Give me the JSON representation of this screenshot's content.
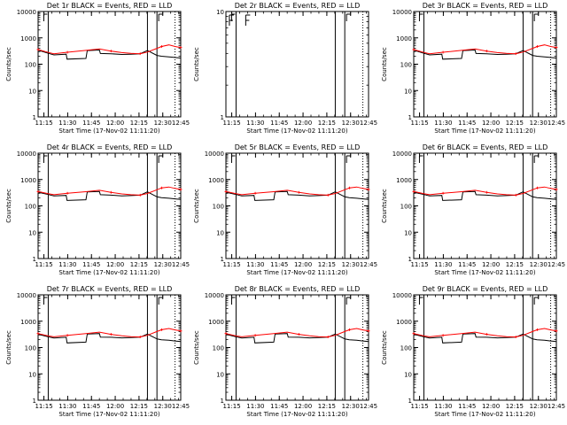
{
  "chart_data": [
    {
      "type": "line",
      "title": "Det 1r BLACK = Events, RED = LLD",
      "xlabel": "Start Time (17-Nov-02 11:11:20)",
      "ylabel": "Counts/sec",
      "x_ticks": [
        "11:15",
        "11:30",
        "11:45",
        "12:00",
        "12:15",
        "12:30",
        "12:45"
      ],
      "y_scale": "log",
      "ylim": [
        1,
        10000
      ],
      "y_ticks": [
        1,
        10,
        100,
        1000,
        10000
      ],
      "y_tick_labels": [
        "1",
        "10",
        "100",
        "1000",
        "10000"
      ],
      "has_data": true,
      "series": [
        {
          "color": "#000000",
          "x": [
            0.0,
            6.4,
            10.0,
            17.7,
            18.3,
            30.2,
            31.0,
            38.7,
            39.3,
            46.0,
            52.8,
            58.5,
            64.4,
            69.0,
            75.0,
            77.8,
            82.5,
            86.4,
            90.0
          ],
          "y": [
            340,
            260,
            225,
            240,
            155,
            165,
            330,
            345,
            255,
            250,
            235,
            240,
            250,
            330,
            215,
            200,
            190,
            180,
            170
          ]
        },
        {
          "color": "#ff0000",
          "x": [
            0.0,
            6.4,
            10.0,
            18.5,
            30.2,
            38.7,
            46.0,
            52.8,
            58.5,
            64.4,
            69.0,
            75.0,
            78.0,
            82.5,
            86.4,
            90.0
          ],
          "y": [
            360,
            280,
            250,
            285,
            335,
            380,
            315,
            275,
            258,
            250,
            288,
            400,
            470,
            540,
            470,
            430
          ]
        }
      ]
    },
    {
      "type": "line",
      "title": "Det 2r BLACK = Events, RED = LLD",
      "xlabel": "Start Time (17-Nov-02 11:11:20)",
      "ylabel": "Counts/sec",
      "x_ticks": [
        "11:15",
        "11:30",
        "11:45",
        "12:00",
        "12:15",
        "12:30",
        "12:45"
      ],
      "y_scale": "log",
      "ylim": [
        1,
        10
      ],
      "y_ticks": [
        1,
        10
      ],
      "y_tick_labels": [
        "1",
        "10"
      ],
      "has_data": false,
      "series": []
    },
    {
      "type": "line",
      "title": "Det 3r BLACK = Events, RED = LLD",
      "xlabel": "Start Time (17-Nov-02 11:11:20)",
      "ylabel": "Counts/sec",
      "x_ticks": [
        "11:15",
        "11:30",
        "11:45",
        "12:00",
        "12:15",
        "12:30",
        "12:45"
      ],
      "y_scale": "log",
      "ylim": [
        1,
        10000
      ],
      "y_ticks": [
        1,
        10,
        100,
        1000,
        10000
      ],
      "y_tick_labels": [
        "1",
        "10",
        "100",
        "1000",
        "10000"
      ],
      "has_data": true,
      "series": [
        {
          "color": "#000000",
          "x": [
            0.0,
            6.4,
            10.0,
            17.7,
            18.3,
            30.2,
            31.0,
            38.7,
            39.3,
            46.0,
            52.8,
            58.5,
            64.4,
            69.0,
            75.0,
            77.8,
            82.5,
            86.4,
            90.0
          ],
          "y": [
            340,
            260,
            225,
            240,
            155,
            165,
            330,
            345,
            255,
            250,
            235,
            240,
            250,
            330,
            215,
            200,
            190,
            180,
            170
          ]
        },
        {
          "color": "#ff0000",
          "x": [
            0.0,
            6.4,
            10.0,
            18.5,
            30.2,
            38.7,
            46.0,
            52.8,
            58.5,
            64.4,
            69.0,
            75.0,
            78.0,
            82.5,
            86.4,
            90.0
          ],
          "y": [
            360,
            280,
            250,
            285,
            335,
            380,
            315,
            275,
            258,
            250,
            288,
            400,
            470,
            540,
            470,
            430
          ]
        }
      ]
    },
    {
      "type": "line",
      "title": "Det 4r BLACK = Events, RED = LLD",
      "xlabel": "Start Time (17-Nov-02 11:11:20)",
      "ylabel": "Counts/sec",
      "x_ticks": [
        "11:15",
        "11:30",
        "11:45",
        "12:00",
        "12:15",
        "12:30",
        "12:45"
      ],
      "y_scale": "log",
      "ylim": [
        1,
        10000
      ],
      "y_ticks": [
        1,
        10,
        100,
        1000,
        10000
      ],
      "y_tick_labels": [
        "1",
        "10",
        "100",
        "1000",
        "10000"
      ],
      "has_data": true,
      "series": [
        {
          "color": "#000000",
          "x": [
            0.0,
            6.4,
            10.0,
            17.7,
            18.3,
            30.2,
            31.0,
            38.7,
            39.3,
            46.0,
            52.8,
            58.5,
            64.4,
            69.0,
            75.0,
            77.8,
            82.5,
            86.4,
            90.0
          ],
          "y": [
            330,
            270,
            240,
            250,
            160,
            170,
            340,
            350,
            265,
            255,
            240,
            245,
            255,
            340,
            220,
            205,
            195,
            185,
            175
          ]
        },
        {
          "color": "#ff0000",
          "x": [
            0.0,
            6.4,
            10.0,
            18.5,
            30.2,
            38.7,
            46.0,
            52.8,
            58.5,
            64.4,
            69.0,
            75.0,
            78.0,
            82.5,
            86.4,
            90.0
          ],
          "y": [
            350,
            290,
            265,
            300,
            345,
            390,
            325,
            285,
            265,
            255,
            295,
            410,
            480,
            520,
            460,
            420
          ]
        }
      ]
    },
    {
      "type": "line",
      "title": "Det 5r BLACK = Events, RED = LLD",
      "xlabel": "Start Time (17-Nov-02 11:11:20)",
      "ylabel": "Counts/sec",
      "x_ticks": [
        "11:15",
        "11:30",
        "11:45",
        "12:00",
        "12:15",
        "12:30",
        "12:45"
      ],
      "y_scale": "log",
      "ylim": [
        1,
        10000
      ],
      "y_ticks": [
        1,
        10,
        100,
        1000,
        10000
      ],
      "y_tick_labels": [
        "1",
        "10",
        "100",
        "1000",
        "10000"
      ],
      "has_data": true,
      "series": [
        {
          "color": "#000000",
          "x": [
            0.0,
            6.4,
            10.0,
            17.7,
            18.3,
            30.2,
            31.0,
            38.7,
            39.3,
            46.0,
            52.8,
            58.5,
            64.4,
            69.0,
            75.0,
            77.8,
            82.5,
            86.4,
            90.0
          ],
          "y": [
            330,
            270,
            240,
            250,
            160,
            170,
            340,
            350,
            265,
            255,
            240,
            245,
            255,
            340,
            220,
            205,
            195,
            185,
            175
          ]
        },
        {
          "color": "#ff0000",
          "x": [
            0.0,
            6.4,
            10.0,
            18.5,
            30.2,
            38.7,
            46.0,
            52.8,
            58.5,
            64.4,
            69.0,
            75.0,
            78.0,
            82.5,
            86.4,
            90.0
          ],
          "y": [
            350,
            290,
            265,
            300,
            345,
            390,
            325,
            285,
            265,
            255,
            295,
            410,
            480,
            520,
            460,
            420
          ]
        }
      ]
    },
    {
      "type": "line",
      "title": "Det 6r BLACK = Events, RED = LLD",
      "xlabel": "Start Time (17-Nov-02 11:11:20)",
      "ylabel": "Counts/sec",
      "x_ticks": [
        "11:15",
        "11:30",
        "11:45",
        "12:00",
        "12:15",
        "12:30",
        "12:45"
      ],
      "y_scale": "log",
      "ylim": [
        1,
        10000
      ],
      "y_ticks": [
        1,
        10,
        100,
        1000,
        10000
      ],
      "y_tick_labels": [
        "1",
        "10",
        "100",
        "1000",
        "10000"
      ],
      "has_data": true,
      "series": [
        {
          "color": "#000000",
          "x": [
            0.0,
            6.4,
            10.0,
            17.7,
            18.3,
            30.2,
            31.0,
            38.7,
            39.3,
            46.0,
            52.8,
            58.5,
            64.4,
            69.0,
            75.0,
            77.8,
            82.5,
            86.4,
            90.0
          ],
          "y": [
            330,
            270,
            240,
            250,
            160,
            170,
            340,
            350,
            265,
            255,
            240,
            245,
            255,
            340,
            220,
            205,
            195,
            185,
            175
          ]
        },
        {
          "color": "#ff0000",
          "x": [
            0.0,
            6.4,
            10.0,
            18.5,
            30.2,
            38.7,
            46.0,
            52.8,
            58.5,
            64.4,
            69.0,
            75.0,
            78.0,
            82.5,
            86.4,
            90.0
          ],
          "y": [
            350,
            290,
            265,
            300,
            345,
            390,
            325,
            285,
            265,
            255,
            295,
            410,
            480,
            520,
            460,
            420
          ]
        }
      ]
    },
    {
      "type": "line",
      "title": "Det 7r BLACK = Events, RED = LLD",
      "xlabel": "Start Time (17-Nov-02 11:11:20)",
      "ylabel": "Counts/sec",
      "x_ticks": [
        "11:15",
        "11:30",
        "11:45",
        "12:00",
        "12:15",
        "12:30",
        "12:45"
      ],
      "y_scale": "log",
      "ylim": [
        1,
        10000
      ],
      "y_ticks": [
        1,
        10,
        100,
        1000,
        10000
      ],
      "y_tick_labels": [
        "1",
        "10",
        "100",
        "1000",
        "10000"
      ],
      "has_data": true,
      "series": [
        {
          "color": "#000000",
          "x": [
            0.0,
            6.4,
            10.0,
            17.7,
            18.3,
            30.2,
            31.0,
            38.7,
            39.3,
            46.0,
            52.8,
            58.5,
            64.4,
            69.0,
            75.0,
            77.8,
            82.5,
            86.4,
            90.0
          ],
          "y": [
            320,
            255,
            230,
            245,
            150,
            160,
            325,
            340,
            250,
            245,
            232,
            238,
            248,
            325,
            212,
            198,
            188,
            178,
            168
          ]
        },
        {
          "color": "#ff0000",
          "x": [
            0.0,
            6.4,
            10.0,
            18.5,
            30.2,
            38.7,
            46.0,
            52.8,
            58.5,
            64.4,
            69.0,
            75.0,
            78.0,
            82.5,
            86.4,
            90.0
          ],
          "y": [
            340,
            275,
            255,
            290,
            340,
            385,
            318,
            278,
            260,
            252,
            290,
            405,
            475,
            530,
            465,
            425
          ]
        }
      ]
    },
    {
      "type": "line",
      "title": "Det 8r BLACK = Events, RED = LLD",
      "xlabel": "Start Time (17-Nov-02 11:11:20)",
      "ylabel": "Counts/sec",
      "x_ticks": [
        "11:15",
        "11:30",
        "11:45",
        "12:00",
        "12:15",
        "12:30",
        "12:45"
      ],
      "y_scale": "log",
      "ylim": [
        1,
        10000
      ],
      "y_ticks": [
        1,
        10,
        100,
        1000,
        10000
      ],
      "y_tick_labels": [
        "1",
        "10",
        "100",
        "1000",
        "10000"
      ],
      "has_data": true,
      "series": [
        {
          "color": "#000000",
          "x": [
            0.0,
            6.4,
            10.0,
            17.7,
            18.3,
            30.2,
            31.0,
            38.7,
            39.3,
            46.0,
            52.8,
            58.5,
            64.4,
            69.0,
            75.0,
            77.8,
            82.5,
            86.4,
            90.0
          ],
          "y": [
            320,
            255,
            230,
            245,
            150,
            160,
            325,
            340,
            250,
            245,
            232,
            238,
            248,
            325,
            212,
            198,
            188,
            178,
            168
          ]
        },
        {
          "color": "#ff0000",
          "x": [
            0.0,
            6.4,
            10.0,
            18.5,
            30.2,
            38.7,
            46.0,
            52.8,
            58.5,
            64.4,
            69.0,
            75.0,
            78.0,
            82.5,
            86.4,
            90.0
          ],
          "y": [
            340,
            275,
            255,
            290,
            340,
            385,
            318,
            278,
            260,
            252,
            290,
            405,
            475,
            530,
            465,
            425
          ]
        }
      ]
    },
    {
      "type": "line",
      "title": "Det 9r BLACK = Events, RED = LLD",
      "xlabel": "Start Time (17-Nov-02 11:11:20)",
      "ylabel": "Counts/sec",
      "x_ticks": [
        "11:15",
        "11:30",
        "11:45",
        "12:00",
        "12:15",
        "12:30",
        "12:45"
      ],
      "y_scale": "log",
      "ylim": [
        1,
        10000
      ],
      "y_ticks": [
        1,
        10,
        100,
        1000,
        10000
      ],
      "y_tick_labels": [
        "1",
        "10",
        "100",
        "1000",
        "10000"
      ],
      "has_data": true,
      "series": [
        {
          "color": "#000000",
          "x": [
            0.0,
            6.4,
            10.0,
            17.7,
            18.3,
            30.2,
            31.0,
            38.7,
            39.3,
            46.0,
            52.8,
            58.5,
            64.4,
            69.0,
            75.0,
            77.8,
            82.5,
            86.4,
            90.0
          ],
          "y": [
            320,
            255,
            230,
            245,
            150,
            160,
            325,
            340,
            250,
            245,
            232,
            238,
            248,
            325,
            212,
            198,
            188,
            178,
            168
          ]
        },
        {
          "color": "#ff0000",
          "x": [
            0.0,
            6.4,
            10.0,
            18.5,
            30.2,
            38.7,
            46.0,
            52.8,
            58.5,
            64.4,
            69.0,
            75.0,
            78.0,
            82.5,
            86.4,
            90.0
          ],
          "y": [
            340,
            275,
            255,
            290,
            340,
            385,
            318,
            278,
            260,
            252,
            290,
            405,
            475,
            530,
            465,
            425
          ]
        }
      ]
    }
  ]
}
